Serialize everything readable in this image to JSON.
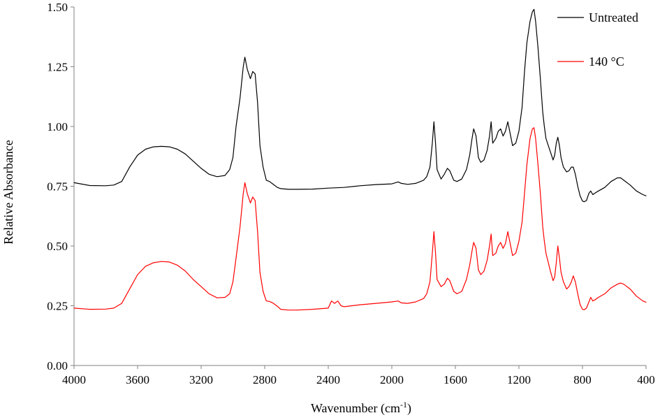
{
  "chart_data": {
    "type": "line",
    "title": "",
    "xlabel_main": "Wavenumber (cm",
    "xlabel_sup": "-1",
    "xlabel_close": ")",
    "ylabel": "Relative Absorbance",
    "xlim": [
      4000,
      400
    ],
    "ylim": [
      0,
      1.5
    ],
    "x_reversed": true,
    "grid": false,
    "legend_placement": "top-right",
    "xticks": [
      4000,
      3600,
      3200,
      2800,
      2400,
      2000,
      1600,
      1200,
      800,
      400
    ],
    "xtick_labels": [
      "4000",
      "3600",
      "3200",
      "2800",
      "2400",
      "2000",
      "1600",
      "1200",
      "800",
      "400"
    ],
    "yticks": [
      0,
      0.25,
      0.5,
      0.75,
      1.0,
      1.25,
      1.5
    ],
    "ytick_labels": [
      "0.00",
      "0.25",
      "0.50",
      "0.75",
      "1.00",
      "1.25",
      "1.50"
    ],
    "series": [
      {
        "name": "Untreated",
        "color": "#000000",
        "points": [
          [
            4000,
            0.765
          ],
          [
            3900,
            0.753
          ],
          [
            3800,
            0.752
          ],
          [
            3750,
            0.755
          ],
          [
            3700,
            0.77
          ],
          [
            3650,
            0.83
          ],
          [
            3600,
            0.88
          ],
          [
            3550,
            0.905
          ],
          [
            3500,
            0.915
          ],
          [
            3450,
            0.917
          ],
          [
            3400,
            0.915
          ],
          [
            3350,
            0.905
          ],
          [
            3300,
            0.885
          ],
          [
            3250,
            0.855
          ],
          [
            3200,
            0.825
          ],
          [
            3150,
            0.8
          ],
          [
            3100,
            0.79
          ],
          [
            3050,
            0.795
          ],
          [
            3020,
            0.82
          ],
          [
            3000,
            0.87
          ],
          [
            2980,
            1.0
          ],
          [
            2955,
            1.12
          ],
          [
            2935,
            1.25
          ],
          [
            2925,
            1.29
          ],
          [
            2910,
            1.24
          ],
          [
            2890,
            1.2
          ],
          [
            2875,
            1.23
          ],
          [
            2860,
            1.22
          ],
          [
            2845,
            1.1
          ],
          [
            2830,
            0.92
          ],
          [
            2810,
            0.83
          ],
          [
            2790,
            0.775
          ],
          [
            2770,
            0.77
          ],
          [
            2750,
            0.76
          ],
          [
            2720,
            0.745
          ],
          [
            2700,
            0.74
          ],
          [
            2650,
            0.737
          ],
          [
            2600,
            0.737
          ],
          [
            2500,
            0.738
          ],
          [
            2400,
            0.742
          ],
          [
            2300,
            0.745
          ],
          [
            2200,
            0.752
          ],
          [
            2100,
            0.757
          ],
          [
            2000,
            0.76
          ],
          [
            1960,
            0.768
          ],
          [
            1940,
            0.762
          ],
          [
            1900,
            0.758
          ],
          [
            1850,
            0.762
          ],
          [
            1800,
            0.775
          ],
          [
            1780,
            0.79
          ],
          [
            1760,
            0.83
          ],
          [
            1745,
            0.93
          ],
          [
            1735,
            1.02
          ],
          [
            1725,
            0.93
          ],
          [
            1715,
            0.82
          ],
          [
            1690,
            0.78
          ],
          [
            1670,
            0.8
          ],
          [
            1650,
            0.825
          ],
          [
            1635,
            0.815
          ],
          [
            1610,
            0.775
          ],
          [
            1590,
            0.77
          ],
          [
            1560,
            0.78
          ],
          [
            1530,
            0.82
          ],
          [
            1510,
            0.88
          ],
          [
            1495,
            0.95
          ],
          [
            1485,
            0.99
          ],
          [
            1470,
            0.96
          ],
          [
            1455,
            0.87
          ],
          [
            1440,
            0.85
          ],
          [
            1420,
            0.86
          ],
          [
            1400,
            0.9
          ],
          [
            1385,
            0.96
          ],
          [
            1375,
            1.02
          ],
          [
            1365,
            0.93
          ],
          [
            1345,
            0.95
          ],
          [
            1330,
            0.98
          ],
          [
            1315,
            0.99
          ],
          [
            1300,
            0.96
          ],
          [
            1285,
            0.98
          ],
          [
            1270,
            1.02
          ],
          [
            1255,
            0.97
          ],
          [
            1240,
            0.92
          ],
          [
            1220,
            0.93
          ],
          [
            1200,
            0.98
          ],
          [
            1180,
            1.08
          ],
          [
            1165,
            1.23
          ],
          [
            1150,
            1.35
          ],
          [
            1130,
            1.44
          ],
          [
            1115,
            1.48
          ],
          [
            1105,
            1.49
          ],
          [
            1095,
            1.44
          ],
          [
            1080,
            1.33
          ],
          [
            1065,
            1.2
          ],
          [
            1050,
            1.06
          ],
          [
            1040,
            1.0
          ],
          [
            1030,
            0.95
          ],
          [
            1015,
            0.92
          ],
          [
            1000,
            0.89
          ],
          [
            985,
            0.86
          ],
          [
            975,
            0.88
          ],
          [
            965,
            0.93
          ],
          [
            955,
            0.955
          ],
          [
            945,
            0.92
          ],
          [
            935,
            0.87
          ],
          [
            920,
            0.83
          ],
          [
            900,
            0.81
          ],
          [
            885,
            0.815
          ],
          [
            870,
            0.83
          ],
          [
            858,
            0.83
          ],
          [
            845,
            0.8
          ],
          [
            830,
            0.75
          ],
          [
            815,
            0.71
          ],
          [
            800,
            0.688
          ],
          [
            790,
            0.685
          ],
          [
            775,
            0.69
          ],
          [
            760,
            0.72
          ],
          [
            748,
            0.73
          ],
          [
            735,
            0.715
          ],
          [
            720,
            0.722
          ],
          [
            700,
            0.73
          ],
          [
            660,
            0.745
          ],
          [
            620,
            0.77
          ],
          [
            580,
            0.785
          ],
          [
            560,
            0.785
          ],
          [
            540,
            0.775
          ],
          [
            500,
            0.755
          ],
          [
            460,
            0.73
          ],
          [
            420,
            0.715
          ],
          [
            400,
            0.71
          ]
        ]
      },
      {
        "name": "140 °C",
        "color": "#ff0000",
        "points": [
          [
            4000,
            0.24
          ],
          [
            3900,
            0.235
          ],
          [
            3800,
            0.236
          ],
          [
            3750,
            0.24
          ],
          [
            3700,
            0.26
          ],
          [
            3650,
            0.32
          ],
          [
            3600,
            0.38
          ],
          [
            3550,
            0.415
          ],
          [
            3500,
            0.43
          ],
          [
            3450,
            0.435
          ],
          [
            3400,
            0.433
          ],
          [
            3350,
            0.42
          ],
          [
            3300,
            0.395
          ],
          [
            3250,
            0.36
          ],
          [
            3200,
            0.33
          ],
          [
            3150,
            0.3
          ],
          [
            3100,
            0.283
          ],
          [
            3050,
            0.285
          ],
          [
            3020,
            0.3
          ],
          [
            3000,
            0.35
          ],
          [
            2980,
            0.45
          ],
          [
            2955,
            0.58
          ],
          [
            2935,
            0.72
          ],
          [
            2925,
            0.765
          ],
          [
            2910,
            0.72
          ],
          [
            2890,
            0.68
          ],
          [
            2875,
            0.705
          ],
          [
            2860,
            0.69
          ],
          [
            2845,
            0.56
          ],
          [
            2830,
            0.39
          ],
          [
            2810,
            0.31
          ],
          [
            2790,
            0.27
          ],
          [
            2770,
            0.268
          ],
          [
            2750,
            0.262
          ],
          [
            2720,
            0.248
          ],
          [
            2700,
            0.235
          ],
          [
            2650,
            0.232
          ],
          [
            2600,
            0.232
          ],
          [
            2500,
            0.235
          ],
          [
            2400,
            0.24
          ],
          [
            2380,
            0.27
          ],
          [
            2360,
            0.26
          ],
          [
            2340,
            0.27
          ],
          [
            2320,
            0.25
          ],
          [
            2300,
            0.246
          ],
          [
            2200,
            0.254
          ],
          [
            2100,
            0.26
          ],
          [
            2000,
            0.266
          ],
          [
            1960,
            0.27
          ],
          [
            1940,
            0.262
          ],
          [
            1900,
            0.26
          ],
          [
            1850,
            0.266
          ],
          [
            1800,
            0.28
          ],
          [
            1780,
            0.3
          ],
          [
            1760,
            0.35
          ],
          [
            1745,
            0.47
          ],
          [
            1735,
            0.56
          ],
          [
            1725,
            0.47
          ],
          [
            1715,
            0.36
          ],
          [
            1690,
            0.33
          ],
          [
            1670,
            0.34
          ],
          [
            1650,
            0.365
          ],
          [
            1635,
            0.355
          ],
          [
            1610,
            0.31
          ],
          [
            1590,
            0.3
          ],
          [
            1560,
            0.31
          ],
          [
            1530,
            0.36
          ],
          [
            1510,
            0.42
          ],
          [
            1495,
            0.48
          ],
          [
            1485,
            0.515
          ],
          [
            1470,
            0.49
          ],
          [
            1455,
            0.4
          ],
          [
            1440,
            0.38
          ],
          [
            1420,
            0.395
          ],
          [
            1400,
            0.44
          ],
          [
            1385,
            0.5
          ],
          [
            1375,
            0.55
          ],
          [
            1365,
            0.46
          ],
          [
            1345,
            0.47
          ],
          [
            1330,
            0.5
          ],
          [
            1315,
            0.515
          ],
          [
            1300,
            0.49
          ],
          [
            1285,
            0.51
          ],
          [
            1270,
            0.56
          ],
          [
            1255,
            0.51
          ],
          [
            1240,
            0.46
          ],
          [
            1220,
            0.47
          ],
          [
            1200,
            0.52
          ],
          [
            1180,
            0.6
          ],
          [
            1165,
            0.72
          ],
          [
            1150,
            0.84
          ],
          [
            1130,
            0.95
          ],
          [
            1115,
            0.99
          ],
          [
            1105,
            0.995
          ],
          [
            1095,
            0.95
          ],
          [
            1080,
            0.84
          ],
          [
            1065,
            0.72
          ],
          [
            1050,
            0.58
          ],
          [
            1040,
            0.52
          ],
          [
            1030,
            0.47
          ],
          [
            1015,
            0.43
          ],
          [
            1000,
            0.39
          ],
          [
            985,
            0.355
          ],
          [
            975,
            0.37
          ],
          [
            965,
            0.43
          ],
          [
            955,
            0.5
          ],
          [
            945,
            0.45
          ],
          [
            935,
            0.39
          ],
          [
            920,
            0.35
          ],
          [
            900,
            0.32
          ],
          [
            885,
            0.33
          ],
          [
            870,
            0.35
          ],
          [
            858,
            0.375
          ],
          [
            845,
            0.35
          ],
          [
            830,
            0.3
          ],
          [
            815,
            0.255
          ],
          [
            800,
            0.235
          ],
          [
            790,
            0.233
          ],
          [
            775,
            0.24
          ],
          [
            760,
            0.265
          ],
          [
            748,
            0.285
          ],
          [
            735,
            0.27
          ],
          [
            720,
            0.275
          ],
          [
            700,
            0.285
          ],
          [
            660,
            0.3
          ],
          [
            620,
            0.325
          ],
          [
            580,
            0.34
          ],
          [
            560,
            0.345
          ],
          [
            540,
            0.34
          ],
          [
            500,
            0.32
          ],
          [
            460,
            0.29
          ],
          [
            420,
            0.27
          ],
          [
            400,
            0.265
          ]
        ]
      }
    ]
  }
}
